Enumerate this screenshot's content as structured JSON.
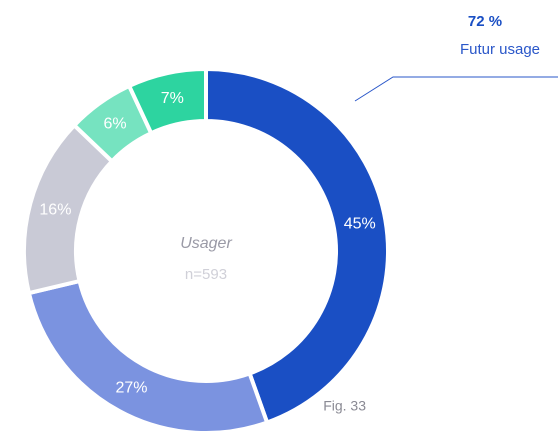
{
  "chart_data": {
    "type": "donut",
    "categories": [
      null,
      null,
      null,
      null,
      null
    ],
    "values": [
      45,
      27,
      16,
      6,
      7
    ],
    "value_labels": [
      "45%",
      "27%",
      "16%",
      "6%",
      "7%"
    ],
    "colors": [
      "#1a4fc4",
      "#7b93e0",
      "#c9cad6",
      "#76e3c0",
      "#2dd4a0"
    ],
    "center_title": "Usager",
    "center_subtitle": "n=593",
    "annotation": {
      "value": "72 %",
      "label": "Futur usage"
    },
    "caption": "Fig. 33"
  }
}
